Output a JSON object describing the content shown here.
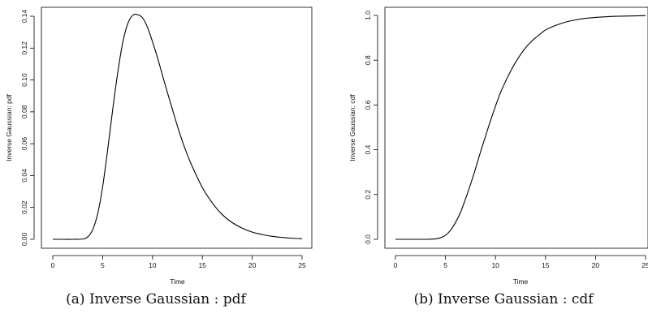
{
  "chart_data": [
    {
      "type": "line",
      "caption": "(a) Inverse Gaussian : pdf",
      "xlabel": "Time",
      "ylabel": "Inverse Gaussian: pdf",
      "xlim": [
        0,
        25
      ],
      "ylim": [
        0,
        0.14
      ],
      "x_ticks": [
        0,
        5,
        10,
        15,
        20,
        25
      ],
      "x_tick_labels": [
        "0",
        "5",
        "10",
        "15",
        "20",
        "25"
      ],
      "y_ticks": [
        0,
        0.02,
        0.04,
        0.06,
        0.08,
        0.1,
        0.12,
        0.14
      ],
      "y_tick_labels": [
        "0.00",
        "0.02",
        "0.04",
        "0.06",
        "0.08",
        "0.10",
        "0.12",
        "0.14"
      ],
      "grid": false,
      "series": [
        {
          "x": [
            0,
            1,
            2,
            3,
            3.5,
            4,
            4.5,
            5,
            5.5,
            6,
            6.5,
            7,
            7.5,
            8,
            8.5,
            9,
            9.5,
            10,
            10.5,
            11,
            11.5,
            12,
            12.5,
            13,
            13.5,
            14,
            15,
            16,
            17,
            18,
            19,
            20,
            21,
            22,
            23,
            24,
            25
          ],
          "y": [
            0,
            0,
            0,
            0.0002,
            0.0015,
            0.006,
            0.016,
            0.033,
            0.056,
            0.081,
            0.104,
            0.123,
            0.135,
            0.1405,
            0.141,
            0.139,
            0.133,
            0.124,
            0.114,
            0.103,
            0.092,
            0.0815,
            0.071,
            0.0615,
            0.053,
            0.0455,
            0.0325,
            0.0228,
            0.0155,
            0.0105,
            0.007,
            0.0045,
            0.003,
            0.0019,
            0.0012,
            0.0007,
            0.0004
          ]
        }
      ]
    },
    {
      "type": "line",
      "caption": "(b) Inverse Gaussian : cdf",
      "xlabel": "Time",
      "ylabel": "Inverse Gaussian: cdf",
      "xlim": [
        0,
        25
      ],
      "ylim": [
        0,
        1.0
      ],
      "x_ticks": [
        0,
        5,
        10,
        15,
        20,
        25
      ],
      "x_tick_labels": [
        "0",
        "5",
        "10",
        "15",
        "20",
        "25"
      ],
      "y_ticks": [
        0,
        0.2,
        0.4,
        0.6,
        0.8,
        1.0
      ],
      "y_tick_labels": [
        "0.0",
        "0.2",
        "0.4",
        "0.6",
        "0.8",
        "1.0"
      ],
      "grid": false,
      "series": [
        {
          "x": [
            0,
            1,
            2,
            3,
            3.5,
            4,
            4.5,
            5,
            5.5,
            6,
            6.5,
            7,
            7.5,
            8,
            8.5,
            9,
            9.5,
            10,
            10.5,
            11,
            11.5,
            12,
            12.5,
            13,
            13.5,
            14,
            14.5,
            15,
            16,
            17,
            18,
            19,
            20,
            21,
            22,
            23,
            24,
            25
          ],
          "y": [
            0,
            0,
            0,
            0,
            0.0005,
            0.002,
            0.007,
            0.018,
            0.04,
            0.075,
            0.12,
            0.18,
            0.245,
            0.315,
            0.39,
            0.46,
            0.53,
            0.595,
            0.655,
            0.705,
            0.75,
            0.79,
            0.825,
            0.855,
            0.88,
            0.9,
            0.918,
            0.935,
            0.955,
            0.97,
            0.98,
            0.987,
            0.991,
            0.994,
            0.996,
            0.997,
            0.998,
            0.999
          ]
        }
      ]
    }
  ]
}
